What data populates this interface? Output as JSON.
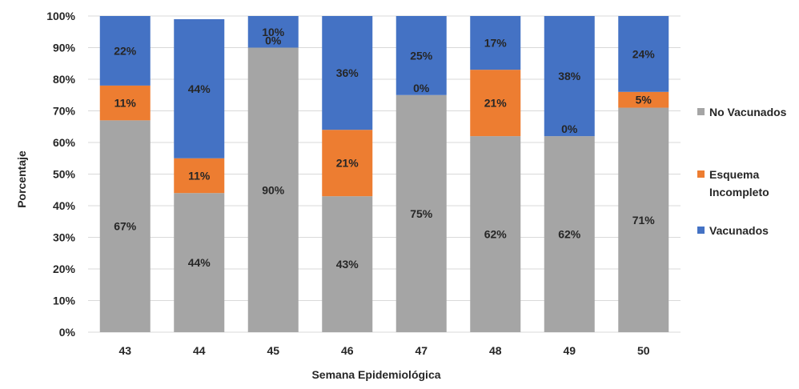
{
  "chart_data": {
    "type": "bar",
    "stacked": true,
    "percent_stacked": true,
    "title": "",
    "xlabel": "Semana Epidemiológica",
    "ylabel": "Porcentaje",
    "ylim": [
      0,
      100
    ],
    "y_ticks": [
      "0%",
      "10%",
      "20%",
      "30%",
      "40%",
      "50%",
      "60%",
      "70%",
      "80%",
      "90%",
      "100%"
    ],
    "grid": "horizontal",
    "legend_position": "right",
    "categories": [
      "43",
      "44",
      "45",
      "46",
      "47",
      "48",
      "49",
      "50"
    ],
    "series": [
      {
        "name": "No Vacunados",
        "color": "#a5a5a5",
        "values": [
          67,
          44,
          90,
          43,
          75,
          62,
          62,
          71
        ],
        "labels": [
          "67%",
          "44%",
          "90%",
          "43%",
          "75%",
          "62%",
          "62%",
          "71%"
        ]
      },
      {
        "name": "Esquema Incompleto",
        "color": "#ed7d31",
        "values": [
          11,
          11,
          0,
          21,
          0,
          21,
          0,
          5
        ],
        "labels": [
          "11%",
          "11%",
          "0%",
          "21%",
          "0%",
          "21%",
          "0%",
          "5%"
        ]
      },
      {
        "name": "Vacunados",
        "color": "#4472c4",
        "values": [
          22,
          44,
          10,
          36,
          25,
          17,
          38,
          24
        ],
        "labels": [
          "22%",
          "44%",
          "10%",
          "36%",
          "25%",
          "17%",
          "38%",
          "24%"
        ]
      }
    ],
    "legend": [
      {
        "lines": [
          "No Vacunados"
        ],
        "color": "#a5a5a5"
      },
      {
        "lines": [
          "Esquema",
          "Incompleto"
        ],
        "color": "#ed7d31"
      },
      {
        "lines": [
          "Vacunados"
        ],
        "color": "#4472c4"
      }
    ]
  }
}
